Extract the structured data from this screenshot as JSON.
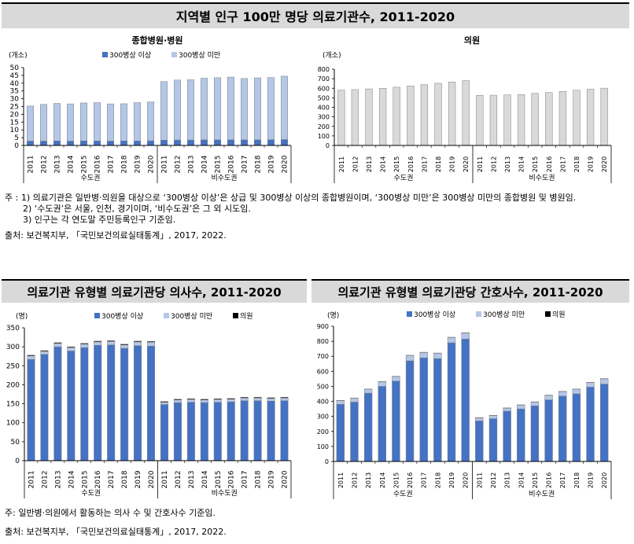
{
  "titles": {
    "top": "지역별 인구 100만 명당 의료기관수, 2011-2020",
    "bottom_left": "의료기관 유형별 의료기관당 의사수, 2011-2020",
    "bottom_right": "의료기관 유형별 의료기관당 간호사수, 2011-2020"
  },
  "notes": {
    "top_note1": "주 : 1) 의료기관은 일반병·의원을 대상으로 ‘300병상 이상’은 상급 및 300병상 이상의 종합병원이며, ‘300병상 미만’은 300병상 미만의 종합병원 및 병원임.",
    "top_note2": "2) ‘수도권’은 서울, 인천, 경기이며, ‘비수도권’은 그 외 시도임.",
    "top_note3": "3) 인구는 각 연도말 주민등록인구 기준임.",
    "top_source": "출처: 보건복지부, 「국민보건의료실태통계」, 2017, 2022.",
    "bottom_note": "주: 일반병·의원에서 활동하는 의사 수 및 간호사수 기준임.",
    "bottom_source": "출처: 보건복지부, 「국민보건의료실태통계」, 2017, 2022."
  },
  "colors": {
    "dark": "#4472c4",
    "light": "#b4c7e7",
    "black": "#000000",
    "gray": "#d9d9d9"
  },
  "chart_data": [
    {
      "id": "hospitals",
      "type": "bar",
      "stacked": true,
      "title": "종합병원·병원",
      "ylabel": "(개소)",
      "ylim": [
        0,
        50
      ],
      "yticks": [
        0,
        5,
        10,
        15,
        20,
        25,
        30,
        35,
        40,
        45,
        50
      ],
      "categories": [
        "2011",
        "2012",
        "2013",
        "2014",
        "2015",
        "2016",
        "2017",
        "2018",
        "2019",
        "2020"
      ],
      "groups": [
        "수도권",
        "비수도권"
      ],
      "legend": [
        "300병상 이상",
        "300병상 미만"
      ],
      "series": [
        {
          "name": "300병상 이상",
          "color": "dark",
          "values": {
            "수도권": [
              2.8,
              2.8,
              2.9,
              2.8,
              2.9,
              2.9,
              2.8,
              2.9,
              2.9,
              3.0
            ],
            "비수도권": [
              3.4,
              3.5,
              3.5,
              3.6,
              3.6,
              3.6,
              3.6,
              3.6,
              3.7,
              3.8
            ]
          }
        },
        {
          "name": "300병상 미만",
          "color": "light",
          "values": {
            "수도권": [
              22.5,
              23.6,
              24.1,
              23.9,
              24.4,
              24.6,
              23.9,
              23.9,
              24.6,
              24.9
            ],
            "비수도권": [
              37.6,
              38.5,
              38.7,
              39.6,
              39.9,
              40.3,
              39.4,
              39.8,
              39.9,
              40.7
            ]
          }
        }
      ]
    },
    {
      "id": "clinics",
      "type": "bar",
      "stacked": false,
      "title": "의원",
      "ylabel": "(개소)",
      "ylim": [
        0,
        800
      ],
      "yticks": [
        0,
        100,
        200,
        300,
        400,
        500,
        600,
        700,
        800
      ],
      "categories": [
        "2011",
        "2012",
        "2013",
        "2014",
        "2015",
        "2016",
        "2017",
        "2018",
        "2019",
        "2020"
      ],
      "groups": [
        "수도권",
        "비수도권"
      ],
      "legend": [],
      "series": [
        {
          "name": "의원",
          "color": "gray",
          "values": {
            "수도권": [
              580,
              586,
              593,
              600,
              611,
              624,
              638,
              652,
              666,
              680
            ],
            "비수도권": [
              526,
              527,
              530,
              534,
              546,
              556,
              566,
              579,
              590,
              601
            ]
          }
        }
      ]
    },
    {
      "id": "doctors",
      "type": "bar",
      "stacked": true,
      "title": "",
      "ylabel": "(명)",
      "ylim": [
        0,
        350
      ],
      "yticks": [
        0,
        50,
        100,
        150,
        200,
        250,
        300,
        350
      ],
      "categories": [
        "2011",
        "2012",
        "2013",
        "2014",
        "2015",
        "2016",
        "2017",
        "2018",
        "2019",
        "2020"
      ],
      "groups": [
        "수도권",
        "비수도권"
      ],
      "legend": [
        "300병상 이상",
        "300병상 미만",
        "의원"
      ],
      "series": [
        {
          "name": "300병상 이상",
          "color": "dark",
          "values": {
            "수도권": [
              267,
              280,
              300,
              289,
              298,
              304,
              305,
              296,
              303,
              302
            ],
            "비수도권": [
              148,
              153,
              154,
              153,
              154,
              155,
              158,
              158,
              157,
              158
            ]
          }
        },
        {
          "name": "300병상 미만",
          "color": "light",
          "values": {
            "수도권": [
              9,
              8,
              9,
              9,
              9,
              9,
              9,
              9,
              10,
              10
            ],
            "비수도권": [
              6,
              7,
              7,
              7,
              7,
              7,
              7,
              7,
              7,
              7
            ]
          }
        },
        {
          "name": "의원",
          "color": "black",
          "values": {
            "수도권": [
              2,
              2,
              2,
              2,
              2,
              2,
              2,
              2,
              2,
              2
            ],
            "비수도권": [
              2,
              2,
              2,
              2,
              2,
              2,
              2,
              2,
              2,
              2
            ]
          }
        }
      ]
    },
    {
      "id": "nurses",
      "type": "bar",
      "stacked": true,
      "title": "",
      "ylabel": "(명)",
      "ylim": [
        0,
        900
      ],
      "yticks": [
        0,
        100,
        200,
        300,
        400,
        500,
        600,
        700,
        800,
        900
      ],
      "categories": [
        "2011",
        "2012",
        "2013",
        "2014",
        "2015",
        "2016",
        "2017",
        "2018",
        "2019",
        "2020"
      ],
      "groups": [
        "수도권",
        "비수도권"
      ],
      "legend": [
        "300병상 이상",
        "300병상 미만",
        "의원"
      ],
      "series": [
        {
          "name": "300병상 이상",
          "color": "dark",
          "values": {
            "수도권": [
              380,
              395,
              455,
              500,
              535,
              670,
              690,
              685,
              790,
              815
            ],
            "비수도권": [
              270,
              285,
              335,
              350,
              370,
              410,
              435,
              450,
              495,
              515
            ]
          }
        },
        {
          "name": "300병상 미만",
          "color": "light",
          "values": {
            "수도권": [
              25,
              25,
              25,
              30,
              30,
              35,
              35,
              35,
              35,
              40
            ],
            "비수도권": [
              20,
              20,
              20,
              25,
              25,
              30,
              30,
              30,
              30,
              35
            ]
          }
        },
        {
          "name": "의원",
          "color": "black",
          "values": {
            "수도권": [
              2,
              2,
              2,
              2,
              2,
              2,
              2,
              2,
              2,
              2
            ],
            "비수도권": [
              2,
              2,
              2,
              2,
              2,
              2,
              2,
              2,
              2,
              2
            ]
          }
        }
      ]
    }
  ]
}
